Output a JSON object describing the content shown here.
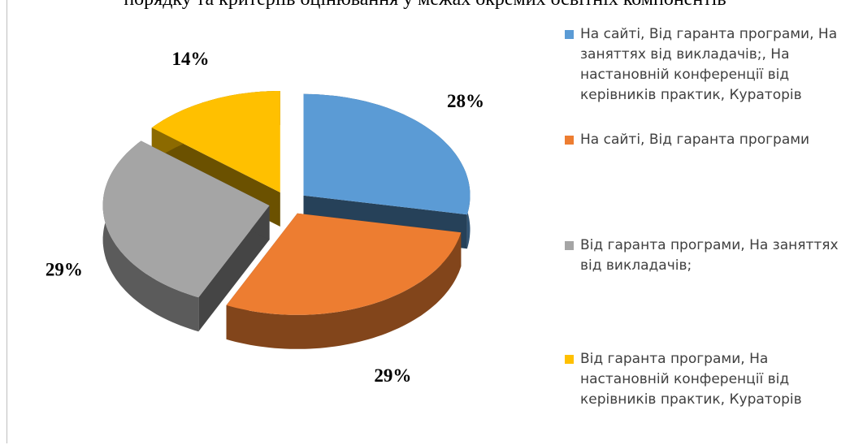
{
  "chart_data": {
    "type": "pie",
    "title": "порядку та критеріїв оцінювання у межах окремих освітніх компонентів",
    "categories": [
      "На сайті, Від гаранта програми, На заняттях від викладачів;, На настановній конференції від керівників практик, Кураторів",
      "На сайті, Від гаранта програми",
      "Від гаранта програми, На заняттях від викладачів;",
      "Від гаранта програми, На настановній конференції від керівників практик, Кураторів"
    ],
    "values": [
      28,
      29,
      29,
      14
    ],
    "value_labels": [
      "28%",
      "29%",
      "29%",
      "14%"
    ],
    "colors": [
      "#5b9bd5",
      "#ed7d31",
      "#a5a5a5",
      "#ffc000"
    ],
    "legend": "right"
  }
}
